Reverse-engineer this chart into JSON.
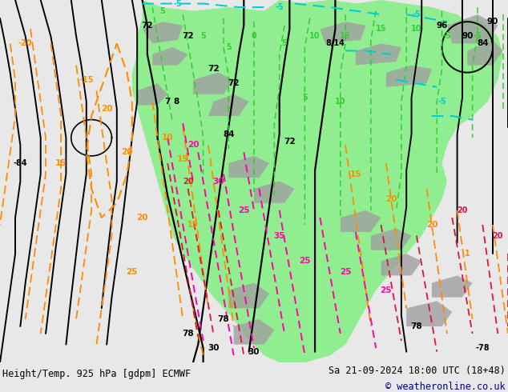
{
  "title_left": "Height/Temp. 925 hPa [gdpm] ECMWF",
  "title_right": "Sa 21-09-2024 18:00 UTC (18+48)",
  "copyright": "© weatheronline.co.uk",
  "fig_width": 6.34,
  "fig_height": 4.9,
  "dpi": 100,
  "map_bg": "#e8e8e8",
  "bottom_bar_color": "#e0e0e0",
  "title_fontsize": 8.5,
  "copyright_color": "#00008b",
  "copyright_fontsize": 8.5,
  "green_fill": "#90ee90",
  "gray_fill": "#a0a0a0",
  "col_black": "#000000",
  "col_orange": "#ff8c00",
  "col_lime": "#32cd32",
  "col_cyan": "#00ced1",
  "col_red": "#dc143c",
  "col_magenta": "#ff00aa"
}
